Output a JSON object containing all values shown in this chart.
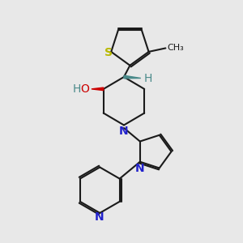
{
  "bg_color": "#e8e8e8",
  "bond_color": "#1a1a1a",
  "bond_lw": 1.5,
  "S_color": "#b8b800",
  "N_color": "#2222cc",
  "O_color": "#cc0000",
  "H_color": "#4a8a8a",
  "stereo_color": "#4a8a8a",
  "label_fontsize": 10,
  "label_fontsize_small": 8,
  "figsize": [
    3.0,
    3.0
  ],
  "dpi": 100,
  "xlim": [
    0,
    10
  ],
  "ylim": [
    0,
    10
  ]
}
